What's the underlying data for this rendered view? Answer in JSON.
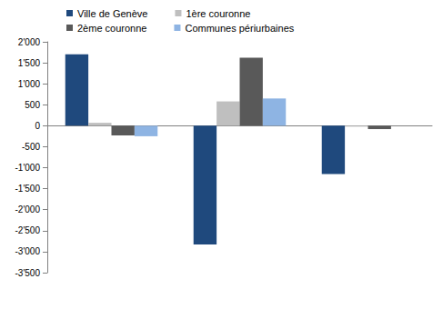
{
  "chart_data": {
    "type": "bar",
    "categories": [
      null,
      null,
      null
    ],
    "series": [
      {
        "name": "Ville de Genève",
        "color": "#1f497d",
        "values": [
          1700,
          -2830,
          -1150
        ]
      },
      {
        "name": "1ère couronne",
        "color": "#bfbfbf",
        "values": [
          70,
          580,
          -20
        ]
      },
      {
        "name": "2ème couronne",
        "color": "#595959",
        "values": [
          -230,
          1620,
          -80
        ]
      },
      {
        "name": "Communes périurbaines",
        "color": "#8eb4e3",
        "values": [
          -250,
          650,
          null
        ]
      }
    ],
    "ylim": [
      -3500,
      2000
    ],
    "yticks": [
      {
        "value": -3500,
        "label": "-3'500"
      },
      {
        "value": -3000,
        "label": "-3'000"
      },
      {
        "value": -2500,
        "label": "-2'500"
      },
      {
        "value": -2000,
        "label": "-2'000"
      },
      {
        "value": -1500,
        "label": "-1'500"
      },
      {
        "value": -1000,
        "label": "-1'000"
      },
      -500,
      0,
      500,
      {
        "value": 1000,
        "label": "1'000"
      },
      {
        "value": 1500,
        "label": "1'500"
      },
      {
        "value": 2000,
        "label": "2'000"
      }
    ],
    "grid": false,
    "legend": "top"
  }
}
